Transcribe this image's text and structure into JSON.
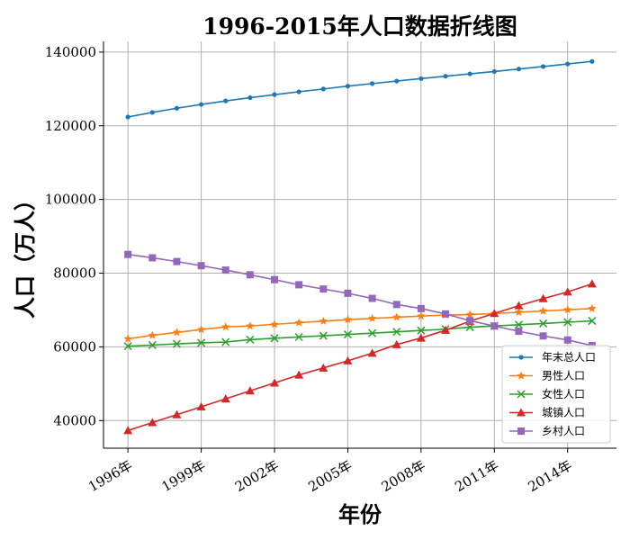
{
  "chart_data": {
    "type": "line",
    "title": "1996-2015年人口数据折线图",
    "xlabel": "年份",
    "ylabel": "人口（万人）",
    "x": [
      1996,
      1997,
      1998,
      1999,
      2000,
      2001,
      2002,
      2003,
      2004,
      2005,
      2006,
      2007,
      2008,
      2009,
      2010,
      2011,
      2012,
      2013,
      2014,
      2015
    ],
    "xticks": [
      "1996年",
      "1999年",
      "2002年",
      "2005年",
      "2008年",
      "2011年",
      "2014年"
    ],
    "yticks": [
      "40000",
      "60000",
      "80000",
      "100000",
      "120000",
      "140000"
    ],
    "xlim": [
      1995,
      2016
    ],
    "ylim": [
      32500,
      142900
    ],
    "grid": true,
    "legend_position": "lower-right",
    "series": [
      {
        "name": "年末总人口",
        "marker": "circle",
        "color": "#1f77b4",
        "values": [
          122389,
          123626,
          124761,
          125786,
          126743,
          127627,
          128453,
          129227,
          129988,
          130756,
          131448,
          132129,
          132802,
          133450,
          134091,
          134735,
          135404,
          136072,
          136782,
          137462
        ]
      },
      {
        "name": "男性人口",
        "marker": "star",
        "color": "#ff7f0e",
        "values": [
          62200,
          63131,
          63940,
          64692,
          65437,
          65672,
          66115,
          66556,
          66976,
          67375,
          67728,
          68048,
          68357,
          68647,
          68748,
          69068,
          69395,
          69728,
          70079,
          70414
        ]
      },
      {
        "name": "女性人口",
        "marker": "x",
        "color": "#2ca02c",
        "values": [
          60189,
          60495,
          60821,
          61094,
          61306,
          61955,
          62338,
          62671,
          63012,
          63381,
          63720,
          64081,
          64445,
          64803,
          65343,
          65667,
          66009,
          66344,
          66703,
          67048
        ]
      },
      {
        "name": "城镇人口",
        "marker": "triangle",
        "color": "#d62728",
        "values": [
          37304,
          39449,
          41608,
          43748,
          45906,
          48064,
          50212,
          52376,
          54283,
          56212,
          58288,
          60633,
          62403,
          64512,
          66978,
          69079,
          71182,
          73111,
          74916,
          77116
        ]
      },
      {
        "name": "乡村人口",
        "marker": "square",
        "color": "#9467bd",
        "values": [
          85085,
          84177,
          83153,
          82038,
          80837,
          79563,
          78241,
          76851,
          75705,
          74544,
          73160,
          71496,
          70399,
          68938,
          67113,
          65656,
          64222,
          62961,
          61866,
          60346
        ]
      }
    ]
  }
}
